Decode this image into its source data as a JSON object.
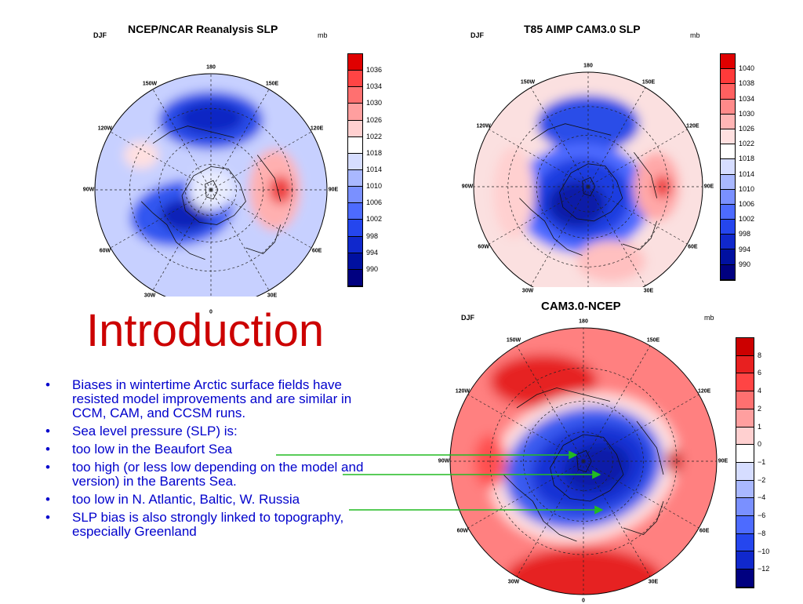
{
  "slide": {
    "title": "Introduction",
    "bullets": [
      "Biases in wintertime Arctic surface fields have resisted model improvements and are similar in CCM, CAM, and CCSM runs.",
      "Sea level pressure (SLP) is:",
      "too low in the Beaufort Sea",
      "too high (or less low depending on the model and version) in the Barents Sea.",
      "too low in N. Atlantic, Baltic, W. Russia",
      "SLP bias is also strongly linked to topography, especially Greenland"
    ],
    "bullet_glyph": "•",
    "text_color": "#0000cc",
    "title_color": "#cc0000",
    "arrow_color": "#22bb22"
  },
  "maps": [
    {
      "title": "NCEP/NCAR Reanalysis SLP",
      "season": "DJF",
      "units": "mb",
      "colorbar": [
        "1036",
        "1034",
        "1030",
        "1026",
        "1022",
        "1018",
        "1014",
        "1010",
        "1006",
        "1002",
        "998",
        "994",
        "990"
      ],
      "colorbar_colors": [
        "#e00000",
        "#ff4444",
        "#ff7070",
        "#ff9f9f",
        "#ffd0d0",
        "#ffffff",
        "#d6ddff",
        "#a9b8ff",
        "#7a90ff",
        "#4d6bff",
        "#2546ee",
        "#1028cc",
        "#0010a0",
        "#000080"
      ]
    },
    {
      "title": "T85 AIMP CAM3.0 SLP",
      "season": "DJF",
      "units": "mb",
      "colorbar": [
        "1040",
        "1038",
        "1034",
        "1030",
        "1026",
        "1022",
        "1018",
        "1014",
        "1010",
        "1006",
        "1002",
        "998",
        "994",
        "990"
      ],
      "colorbar_colors": [
        "#e00000",
        "#ff3a3a",
        "#ff6060",
        "#ff8a8a",
        "#ffb5b5",
        "#ffe0e0",
        "#ffffff",
        "#d6ddff",
        "#a9b8ff",
        "#7a90ff",
        "#4d6bff",
        "#2546ee",
        "#1028cc",
        "#0010a0",
        "#000080"
      ]
    },
    {
      "title": "CAM3.0-NCEP",
      "season": "DJF",
      "units": "mb",
      "colorbar": [
        "8",
        "6",
        "4",
        "2",
        "1",
        "0",
        "−1",
        "−2",
        "−4",
        "−6",
        "−8",
        "−10",
        "−12"
      ],
      "colorbar_colors": [
        "#cc0000",
        "#e82020",
        "#ff4444",
        "#ff7070",
        "#ff9f9f",
        "#ffd0d0",
        "#ffffff",
        "#d6ddff",
        "#a9b8ff",
        "#7a90ff",
        "#4d6bff",
        "#2546ee",
        "#1028cc",
        "#000080"
      ]
    }
  ],
  "longitude_labels": [
    "180",
    "150E",
    "120E",
    "90E",
    "60E",
    "30E",
    "0",
    "30W",
    "60W",
    "90W",
    "120W",
    "150W"
  ]
}
